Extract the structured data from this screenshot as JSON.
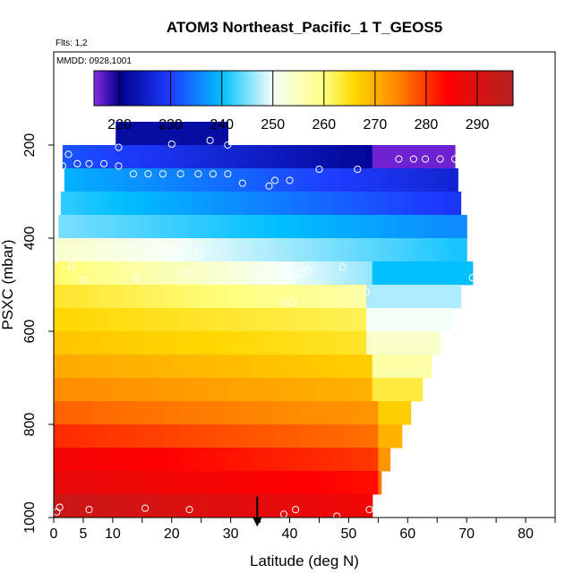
{
  "chart_data": {
    "type": "heatmap",
    "title": "ATOM3 Northeast_Pacific_1 T_GEOS5",
    "flights_label": "Flts: 1,2",
    "date_label": "MMDD: 0928,1001",
    "xlabel": "Latitude (deg N)",
    "ylabel": "PSXC (mbar)",
    "xlim": [
      0,
      85
    ],
    "ylim": [
      1000,
      0
    ],
    "x_ticks": [
      0,
      5,
      10,
      20,
      30,
      40,
      50,
      60,
      70,
      80
    ],
    "y_ticks": [
      200,
      400,
      600,
      800,
      1000
    ],
    "colorbar": {
      "vmin": 215,
      "vmax": 297,
      "ticks": [
        220,
        230,
        240,
        250,
        260,
        270,
        280,
        290
      ],
      "colors": [
        "#8a2be2",
        "#00008b",
        "#1e3cff",
        "#00bfff",
        "#f5fffa",
        "#ffff80",
        "#ffd700",
        "#ff8c00",
        "#ff0000",
        "#b22222"
      ],
      "color_positions": [
        215,
        220,
        230,
        240,
        250,
        260,
        266,
        274,
        284,
        297
      ]
    },
    "layers": [
      {
        "p": 175,
        "lat_min": 10.5,
        "lat_max": 29.5,
        "t_start": 222,
        "t_end": 222,
        "t_step": 222,
        "step_lat": 50
      },
      {
        "p": 225,
        "lat_min": 1.5,
        "lat_max": 68,
        "t_start": 232,
        "t_end": 221,
        "t_step": 216,
        "step_lat": 54
      },
      {
        "p": 275,
        "lat_min": 1.8,
        "lat_max": 68.5,
        "t_start": 239,
        "t_end": 226,
        "t_step": 226,
        "step_lat": 68
      },
      {
        "p": 325,
        "lat_min": 1.2,
        "lat_max": 69,
        "t_start": 242,
        "t_end": 229,
        "t_step": 229,
        "step_lat": 68
      },
      {
        "p": 375,
        "lat_min": 0.8,
        "lat_max": 70,
        "t_start": 245,
        "t_end": 236,
        "t_step": 236,
        "step_lat": 68
      },
      {
        "p": 425,
        "lat_min": 0.4,
        "lat_max": 70,
        "t_start": 254,
        "t_end": 241,
        "t_step": 241,
        "step_lat": 68
      },
      {
        "p": 475,
        "lat_min": 0,
        "lat_max": 71,
        "t_start": 261,
        "t_end": 246,
        "t_step": 240,
        "step_lat": 54
      },
      {
        "p": 525,
        "lat_min": 0,
        "lat_max": 69,
        "t_start": 264,
        "t_end": 257,
        "t_step": 247,
        "step_lat": 53
      },
      {
        "p": 575,
        "lat_min": 0,
        "lat_max": 67.5,
        "t_start": 266,
        "t_end": 262,
        "t_step": 250,
        "step_lat": 53
      },
      {
        "p": 625,
        "lat_min": 0,
        "lat_max": 65.5,
        "t_start": 268,
        "t_end": 264,
        "t_step": 254,
        "step_lat": 53
      },
      {
        "p": 675,
        "lat_min": 0,
        "lat_max": 64,
        "t_start": 271,
        "t_end": 267,
        "t_step": 257,
        "step_lat": 54
      },
      {
        "p": 725,
        "lat_min": 0,
        "lat_max": 62.5,
        "t_start": 274,
        "t_end": 270,
        "t_step": 263,
        "step_lat": 54
      },
      {
        "p": 775,
        "lat_min": 0,
        "lat_max": 60.5,
        "t_start": 277,
        "t_end": 273,
        "t_step": 267,
        "step_lat": 55
      },
      {
        "p": 825,
        "lat_min": 0,
        "lat_max": 59,
        "t_start": 281,
        "t_end": 276,
        "t_step": 270,
        "step_lat": 55
      },
      {
        "p": 875,
        "lat_min": 0,
        "lat_max": 57,
        "t_start": 286,
        "t_end": 280,
        "t_step": 273,
        "step_lat": 55
      },
      {
        "p": 925,
        "lat_min": 0,
        "lat_max": 55.5,
        "t_start": 288,
        "t_end": 283,
        "t_step": 276,
        "step_lat": 55
      },
      {
        "p": 975,
        "lat_min": 0,
        "lat_max": 54,
        "t_start": 293,
        "t_end": 286,
        "t_step": 281,
        "step_lat": 55
      }
    ],
    "observations": [
      {
        "lat": 11,
        "p": 205
      },
      {
        "lat": 20,
        "p": 198
      },
      {
        "lat": 26.5,
        "p": 190
      },
      {
        "lat": 29.5,
        "p": 200
      },
      {
        "lat": 2.5,
        "p": 220
      },
      {
        "lat": 1.5,
        "p": 245
      },
      {
        "lat": 4,
        "p": 240
      },
      {
        "lat": 6,
        "p": 240
      },
      {
        "lat": 8.5,
        "p": 240
      },
      {
        "lat": 11,
        "p": 245
      },
      {
        "lat": 13.5,
        "p": 262
      },
      {
        "lat": 16,
        "p": 262
      },
      {
        "lat": 18.5,
        "p": 262
      },
      {
        "lat": 21.5,
        "p": 262
      },
      {
        "lat": 24.5,
        "p": 262
      },
      {
        "lat": 27,
        "p": 262
      },
      {
        "lat": 29.5,
        "p": 262
      },
      {
        "lat": 32,
        "p": 282
      },
      {
        "lat": 36.5,
        "p": 288
      },
      {
        "lat": 37.5,
        "p": 276
      },
      {
        "lat": 40,
        "p": 276
      },
      {
        "lat": 45,
        "p": 252
      },
      {
        "lat": 51.5,
        "p": 252
      },
      {
        "lat": 58.5,
        "p": 230
      },
      {
        "lat": 61,
        "p": 230
      },
      {
        "lat": 63,
        "p": 230
      },
      {
        "lat": 65.5,
        "p": 230
      },
      {
        "lat": 68,
        "p": 230
      },
      {
        "lat": 0,
        "p": 450
      },
      {
        "lat": 3,
        "p": 460
      },
      {
        "lat": 5,
        "p": 490
      },
      {
        "lat": 8,
        "p": 432
      },
      {
        "lat": 14,
        "p": 485
      },
      {
        "lat": 17,
        "p": 440
      },
      {
        "lat": 22.5,
        "p": 475
      },
      {
        "lat": 24.5,
        "p": 437
      },
      {
        "lat": 40.5,
        "p": 490
      },
      {
        "lat": 42,
        "p": 475
      },
      {
        "lat": 43,
        "p": 470
      },
      {
        "lat": 49,
        "p": 462
      },
      {
        "lat": 71,
        "p": 485
      },
      {
        "lat": 53,
        "p": 515
      },
      {
        "lat": 39,
        "p": 537
      },
      {
        "lat": 40.5,
        "p": 537
      },
      {
        "lat": 0.5,
        "p": 988
      },
      {
        "lat": 1,
        "p": 978
      },
      {
        "lat": 6,
        "p": 983
      },
      {
        "lat": 15.5,
        "p": 980
      },
      {
        "lat": 23,
        "p": 983
      },
      {
        "lat": 39,
        "p": 993
      },
      {
        "lat": 41,
        "p": 983
      },
      {
        "lat": 48,
        "p": 997
      },
      {
        "lat": 53.5,
        "p": 983
      }
    ],
    "arrow": {
      "lat": 34.5,
      "p_from": 955,
      "p_to": 1010
    }
  }
}
